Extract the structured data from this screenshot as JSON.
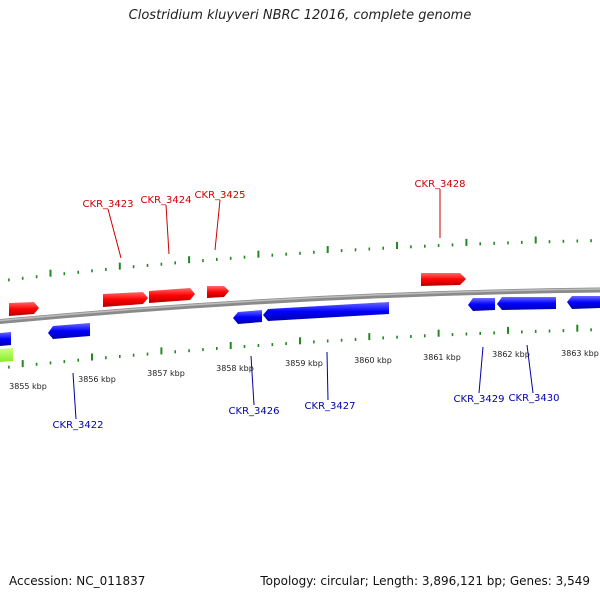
{
  "title": "Clostridium kluyveri NBRC 12016, complete genome",
  "footer": {
    "accession": "Accession: NC_011837",
    "info": "Topology: circular; Length: 3,896,121 bp; Genes: 3,549"
  },
  "colors": {
    "forward": "#ff0000",
    "reverse": "#0000ff",
    "other": "#99ff33",
    "backbone": "#888888",
    "ticks": "#228822",
    "forward_label": "#cc0000",
    "reverse_label": "#0000aa"
  },
  "scale": {
    "labels": [
      "3855 kbp",
      "3856 kbp",
      "3857 kbp",
      "3858 kbp",
      "3859 kbp",
      "3860 kbp",
      "3861 kbp",
      "3862 kbp",
      "3863 kbp"
    ]
  },
  "genes": {
    "forward_labels": [
      "CKR_3423",
      "CKR_3424",
      "CKR_3425",
      "CKR_3428"
    ],
    "reverse_labels": [
      "CKR_3422",
      "CKR_3426",
      "CKR_3427",
      "CKR_3429",
      "CKR_3430"
    ]
  }
}
